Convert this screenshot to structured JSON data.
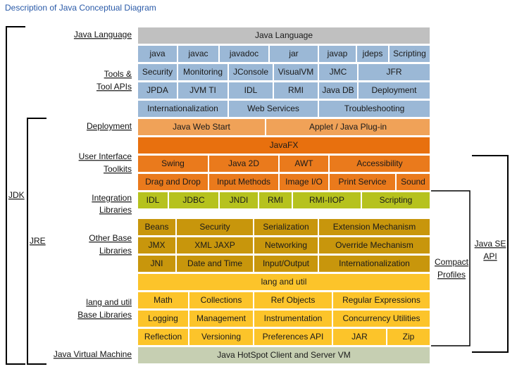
{
  "title": "Description of Java Conceptual Diagram",
  "layers": [
    {
      "label": [
        "Java Language"
      ],
      "rows": [
        [
          "Java Language"
        ]
      ]
    },
    {
      "label": [
        "Tools &",
        "Tool APIs"
      ],
      "rows": [
        [
          "java",
          "javac",
          "javadoc",
          "jar",
          "javap",
          "jdeps",
          "Scripting"
        ],
        [
          "Security",
          "Monitoring",
          "JConsole",
          "VisualVM",
          "JMC",
          "JFR"
        ],
        [
          "JPDA",
          "JVM TI",
          "IDL",
          "RMI",
          "Java DB",
          "Deployment"
        ],
        [
          "Internationalization",
          "Web Services",
          "Troubleshooting"
        ]
      ]
    },
    {
      "label": [
        "Deployment"
      ],
      "rows": [
        [
          "Java Web Start",
          "Applet / Java Plug-in"
        ]
      ]
    },
    {
      "label": [
        "User Interface",
        "Toolkits"
      ],
      "rows": [
        [
          "JavaFX"
        ],
        [
          "Swing",
          "Java 2D",
          "AWT",
          "Accessibility"
        ],
        [
          "Drag and Drop",
          "Input Methods",
          "Image I/O",
          "Print Service",
          "Sound"
        ]
      ]
    },
    {
      "label": [
        "Integration",
        "Libraries"
      ],
      "rows": [
        [
          "IDL",
          "JDBC",
          "JNDI",
          "RMI",
          "RMI-IIOP",
          "Scripting"
        ]
      ]
    },
    {
      "label": [
        "Other Base",
        "Libraries"
      ],
      "rows": [
        [
          "Beans",
          "Security",
          "Serialization",
          "Extension Mechanism"
        ],
        [
          "JMX",
          "XML JAXP",
          "Networking",
          "Override Mechanism"
        ],
        [
          "JNI",
          "Date and Time",
          "Input/Output",
          "Internationalization"
        ]
      ]
    },
    {
      "label": [
        "lang and util",
        "Base Libraries"
      ],
      "rows": [
        [
          "lang and util"
        ],
        [
          "Math",
          "Collections",
          "Ref Objects",
          "Regular Expressions"
        ],
        [
          "Logging",
          "Management",
          "Instrumentation",
          "Concurrency Utilities"
        ],
        [
          "Reflection",
          "Versioning",
          "Preferences API",
          "JAR",
          "Zip"
        ]
      ]
    },
    {
      "label": [
        "Java Virtual Machine"
      ],
      "rows": [
        [
          "Java HotSpot Client and Server VM"
        ]
      ]
    }
  ],
  "brackets": {
    "jdk": "JDK",
    "jre": "JRE",
    "compact_profiles": [
      "Compact",
      "Profiles"
    ],
    "java_se_api": [
      "Java SE",
      "API"
    ]
  }
}
